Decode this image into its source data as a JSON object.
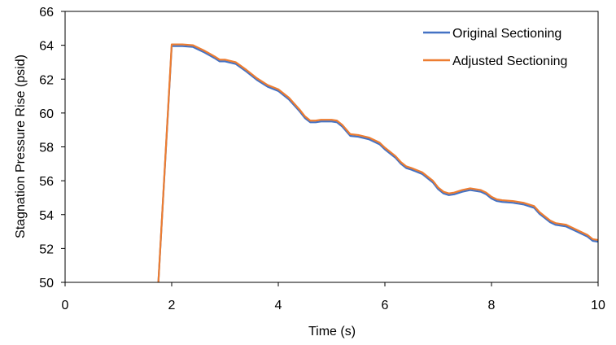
{
  "chart_data": {
    "type": "line",
    "title": "",
    "xlabel": "Time (s)",
    "ylabel": "Stagnation Pressure Rise (psid)",
    "xlim": [
      0,
      10
    ],
    "ylim": [
      50,
      66
    ],
    "xticks": [
      0,
      2,
      4,
      6,
      8,
      10
    ],
    "yticks": [
      50,
      52,
      54,
      56,
      58,
      60,
      62,
      64,
      66
    ],
    "xtick_labels": [
      "0",
      "2",
      "4",
      "6",
      "8",
      "10"
    ],
    "ytick_labels": [
      "50",
      "52",
      "54",
      "56",
      "58",
      "60",
      "62",
      "64",
      "66"
    ],
    "grid": false,
    "legend_position": "top-right",
    "series": [
      {
        "name": "Original Sectioning",
        "color": "#4472C4",
        "x": [
          1.75,
          2.0,
          2.2,
          2.4,
          2.6,
          2.8,
          2.9,
          3.0,
          3.2,
          3.4,
          3.6,
          3.8,
          4.0,
          4.2,
          4.4,
          4.5,
          4.6,
          4.7,
          4.8,
          5.0,
          5.1,
          5.2,
          5.35,
          5.5,
          5.7,
          5.9,
          6.0,
          6.2,
          6.3,
          6.4,
          6.5,
          6.7,
          6.9,
          7.0,
          7.1,
          7.2,
          7.3,
          7.45,
          7.6,
          7.8,
          7.9,
          8.0,
          8.1,
          8.2,
          8.4,
          8.6,
          8.8,
          8.9,
          9.0,
          9.1,
          9.2,
          9.4,
          9.6,
          9.8,
          9.9,
          10.0
        ],
        "y": [
          50.0,
          63.95,
          63.95,
          63.9,
          63.6,
          63.25,
          63.05,
          63.05,
          62.9,
          62.45,
          61.95,
          61.55,
          61.3,
          60.8,
          60.1,
          59.7,
          59.45,
          59.45,
          59.5,
          59.5,
          59.45,
          59.2,
          58.65,
          58.6,
          58.45,
          58.15,
          57.85,
          57.35,
          57.0,
          56.75,
          56.65,
          56.4,
          55.9,
          55.5,
          55.25,
          55.15,
          55.2,
          55.35,
          55.45,
          55.35,
          55.2,
          54.95,
          54.8,
          54.75,
          54.7,
          54.6,
          54.4,
          54.05,
          53.8,
          53.55,
          53.4,
          53.3,
          53.0,
          52.7,
          52.45,
          52.4
        ]
      },
      {
        "name": "Adjusted Sectioning",
        "color": "#ED7D31",
        "x": [
          1.75,
          2.0,
          2.2,
          2.4,
          2.6,
          2.8,
          2.9,
          3.0,
          3.2,
          3.4,
          3.6,
          3.8,
          4.0,
          4.2,
          4.4,
          4.5,
          4.6,
          4.7,
          4.8,
          5.0,
          5.1,
          5.2,
          5.35,
          5.5,
          5.7,
          5.9,
          6.0,
          6.2,
          6.3,
          6.4,
          6.5,
          6.7,
          6.9,
          7.0,
          7.1,
          7.2,
          7.3,
          7.45,
          7.6,
          7.8,
          7.9,
          8.0,
          8.1,
          8.2,
          8.4,
          8.6,
          8.8,
          8.9,
          9.0,
          9.1,
          9.2,
          9.4,
          9.6,
          9.8,
          9.9,
          10.0
        ],
        "y": [
          50.0,
          64.05,
          64.05,
          64.0,
          63.7,
          63.35,
          63.15,
          63.15,
          63.0,
          62.55,
          62.05,
          61.65,
          61.4,
          60.9,
          60.2,
          59.8,
          59.55,
          59.55,
          59.6,
          59.6,
          59.55,
          59.3,
          58.75,
          58.7,
          58.55,
          58.25,
          57.95,
          57.45,
          57.1,
          56.85,
          56.75,
          56.5,
          56.0,
          55.6,
          55.35,
          55.25,
          55.3,
          55.45,
          55.55,
          55.45,
          55.3,
          55.05,
          54.9,
          54.85,
          54.8,
          54.7,
          54.5,
          54.15,
          53.9,
          53.65,
          53.5,
          53.4,
          53.1,
          52.8,
          52.55,
          52.5
        ]
      }
    ]
  }
}
